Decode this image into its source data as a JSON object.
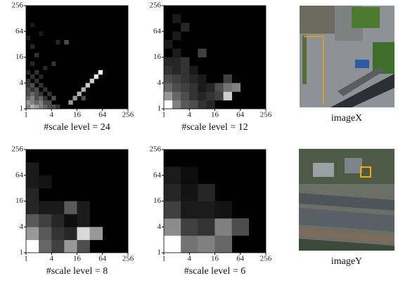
{
  "panels": [
    {
      "label": "#scale level =",
      "levels": 24,
      "cells": [
        [
          0,
          0,
          0.5
        ],
        [
          1,
          0,
          0.7
        ],
        [
          2,
          0,
          0.6
        ],
        [
          3,
          0,
          0.5
        ],
        [
          4,
          0,
          0.4
        ],
        [
          5,
          0,
          0.3
        ],
        [
          6,
          0,
          0.3
        ],
        [
          7,
          0,
          0.2
        ],
        [
          0,
          1,
          0.6
        ],
        [
          1,
          1,
          0.5
        ],
        [
          2,
          1,
          0.4
        ],
        [
          3,
          1,
          0.5
        ],
        [
          4,
          1,
          0.3
        ],
        [
          5,
          1,
          0.3
        ],
        [
          0,
          2,
          0.4
        ],
        [
          1,
          2,
          0.5
        ],
        [
          2,
          2,
          0.3
        ],
        [
          3,
          2,
          0.4
        ],
        [
          4,
          2,
          0.2
        ],
        [
          6,
          2,
          0.3
        ],
        [
          0,
          3,
          0.3
        ],
        [
          1,
          3,
          0.4
        ],
        [
          2,
          3,
          0.3
        ],
        [
          3,
          3,
          0.2
        ],
        [
          5,
          3,
          0.2
        ],
        [
          0,
          4,
          0.3
        ],
        [
          1,
          4,
          0.2
        ],
        [
          2,
          4,
          0.3
        ],
        [
          4,
          4,
          0.2
        ],
        [
          0,
          5,
          0.2
        ],
        [
          1,
          5,
          0.3
        ],
        [
          3,
          5,
          0.2
        ],
        [
          0,
          6,
          0.2
        ],
        [
          2,
          6,
          0.2
        ],
        [
          1,
          7,
          0.2
        ],
        [
          3,
          7,
          0.15
        ],
        [
          0,
          8,
          0.15
        ],
        [
          2,
          8,
          0.2
        ],
        [
          4,
          9,
          0.15
        ],
        [
          1,
          10,
          0.15
        ],
        [
          6,
          10,
          0.2
        ],
        [
          2,
          12,
          0.2
        ],
        [
          9,
          15,
          0.3
        ],
        [
          7,
          15,
          0.15
        ],
        [
          1,
          14,
          0.15
        ],
        [
          0,
          16,
          0.1
        ],
        [
          3,
          17,
          0.1
        ],
        [
          1,
          19,
          0.1
        ],
        [
          13,
          2,
          0.3
        ],
        [
          10,
          1,
          0.6
        ],
        [
          11,
          2,
          0.6
        ],
        [
          12,
          3,
          0.7
        ],
        [
          13,
          4,
          0.7
        ],
        [
          14,
          5,
          0.8
        ],
        [
          15,
          6,
          0.8
        ],
        [
          16,
          7,
          0.9
        ],
        [
          17,
          8,
          1
        ]
      ]
    },
    {
      "label": "#scale level =",
      "levels": 12,
      "cells": [
        [
          0,
          0,
          1
        ],
        [
          1,
          0,
          0.5
        ],
        [
          2,
          0,
          0.35
        ],
        [
          3,
          0,
          0.3
        ],
        [
          4,
          0,
          0.2
        ],
        [
          5,
          0,
          0.15
        ],
        [
          0,
          1,
          0.6
        ],
        [
          1,
          1,
          0.4
        ],
        [
          2,
          1,
          0.3
        ],
        [
          3,
          1,
          0.2
        ],
        [
          4,
          1,
          0.15
        ],
        [
          5,
          1,
          0.2
        ],
        [
          6,
          1,
          0.25
        ],
        [
          7,
          1,
          0.8
        ],
        [
          0,
          2,
          0.4
        ],
        [
          1,
          2,
          0.3
        ],
        [
          2,
          2,
          0.25
        ],
        [
          3,
          2,
          0.2
        ],
        [
          4,
          2,
          0.1
        ],
        [
          5,
          2,
          0.15
        ],
        [
          6,
          2,
          0.3
        ],
        [
          7,
          2,
          0.45
        ],
        [
          8,
          2,
          0.5
        ],
        [
          0,
          3,
          0.3
        ],
        [
          1,
          3,
          0.25
        ],
        [
          2,
          3,
          0.2
        ],
        [
          3,
          3,
          0.15
        ],
        [
          4,
          3,
          0.1
        ],
        [
          7,
          3,
          0.25
        ],
        [
          0,
          4,
          0.2
        ],
        [
          1,
          4,
          0.15
        ],
        [
          2,
          4,
          0.2
        ],
        [
          3,
          4,
          0.1
        ],
        [
          0,
          5,
          0.15
        ],
        [
          1,
          5,
          0.15
        ],
        [
          2,
          5,
          0.2
        ],
        [
          4,
          6,
          0.25
        ],
        [
          0,
          7,
          0.1
        ],
        [
          1,
          6,
          0.1
        ],
        [
          1,
          8,
          0.1
        ],
        [
          2,
          9,
          0.15
        ],
        [
          1,
          10,
          0.1
        ]
      ]
    },
    {
      "label": "#scale level =",
      "levels": 8,
      "cells": [
        [
          0,
          0,
          1
        ],
        [
          1,
          0,
          0.4
        ],
        [
          2,
          0,
          0.25
        ],
        [
          3,
          0,
          0.6
        ],
        [
          4,
          0,
          0.3
        ],
        [
          0,
          1,
          0.6
        ],
        [
          1,
          1,
          0.35
        ],
        [
          2,
          1,
          0.2
        ],
        [
          3,
          1,
          0.15
        ],
        [
          4,
          1,
          0.85
        ],
        [
          5,
          1,
          0.6
        ],
        [
          0,
          2,
          0.35
        ],
        [
          1,
          2,
          0.25
        ],
        [
          2,
          2,
          0.15
        ],
        [
          3,
          2,
          0.05
        ],
        [
          4,
          2,
          0.1
        ],
        [
          0,
          3,
          0.15
        ],
        [
          1,
          3,
          0.1
        ],
        [
          2,
          3,
          0.1
        ],
        [
          3,
          3,
          0.35
        ],
        [
          4,
          3,
          0.1
        ],
        [
          0,
          4,
          0.15
        ],
        [
          0,
          5,
          0.1
        ],
        [
          1,
          5,
          0.08
        ],
        [
          0,
          6,
          0.1
        ]
      ]
    },
    {
      "label": "#scale level =",
      "levels": 6,
      "cells": [
        [
          0,
          0,
          1
        ],
        [
          1,
          0,
          0.45
        ],
        [
          2,
          0,
          0.5
        ],
        [
          3,
          0,
          0.4
        ],
        [
          0,
          1,
          0.55
        ],
        [
          1,
          1,
          0.25
        ],
        [
          2,
          1,
          0.2
        ],
        [
          3,
          1,
          0.5
        ],
        [
          4,
          1,
          0.3
        ],
        [
          0,
          2,
          0.25
        ],
        [
          1,
          2,
          0.1
        ],
        [
          2,
          2,
          0.1
        ],
        [
          3,
          2,
          0.08
        ],
        [
          0,
          3,
          0.15
        ],
        [
          1,
          3,
          0.08
        ],
        [
          2,
          3,
          0.15
        ],
        [
          0,
          4,
          0.1
        ],
        [
          1,
          4,
          0.05
        ]
      ]
    }
  ],
  "axis": {
    "lim": [
      1,
      256
    ],
    "ticks": [
      1,
      4,
      16,
      64,
      256
    ]
  },
  "images": [
    {
      "label": "imageX"
    },
    {
      "label": "imageY"
    }
  ]
}
